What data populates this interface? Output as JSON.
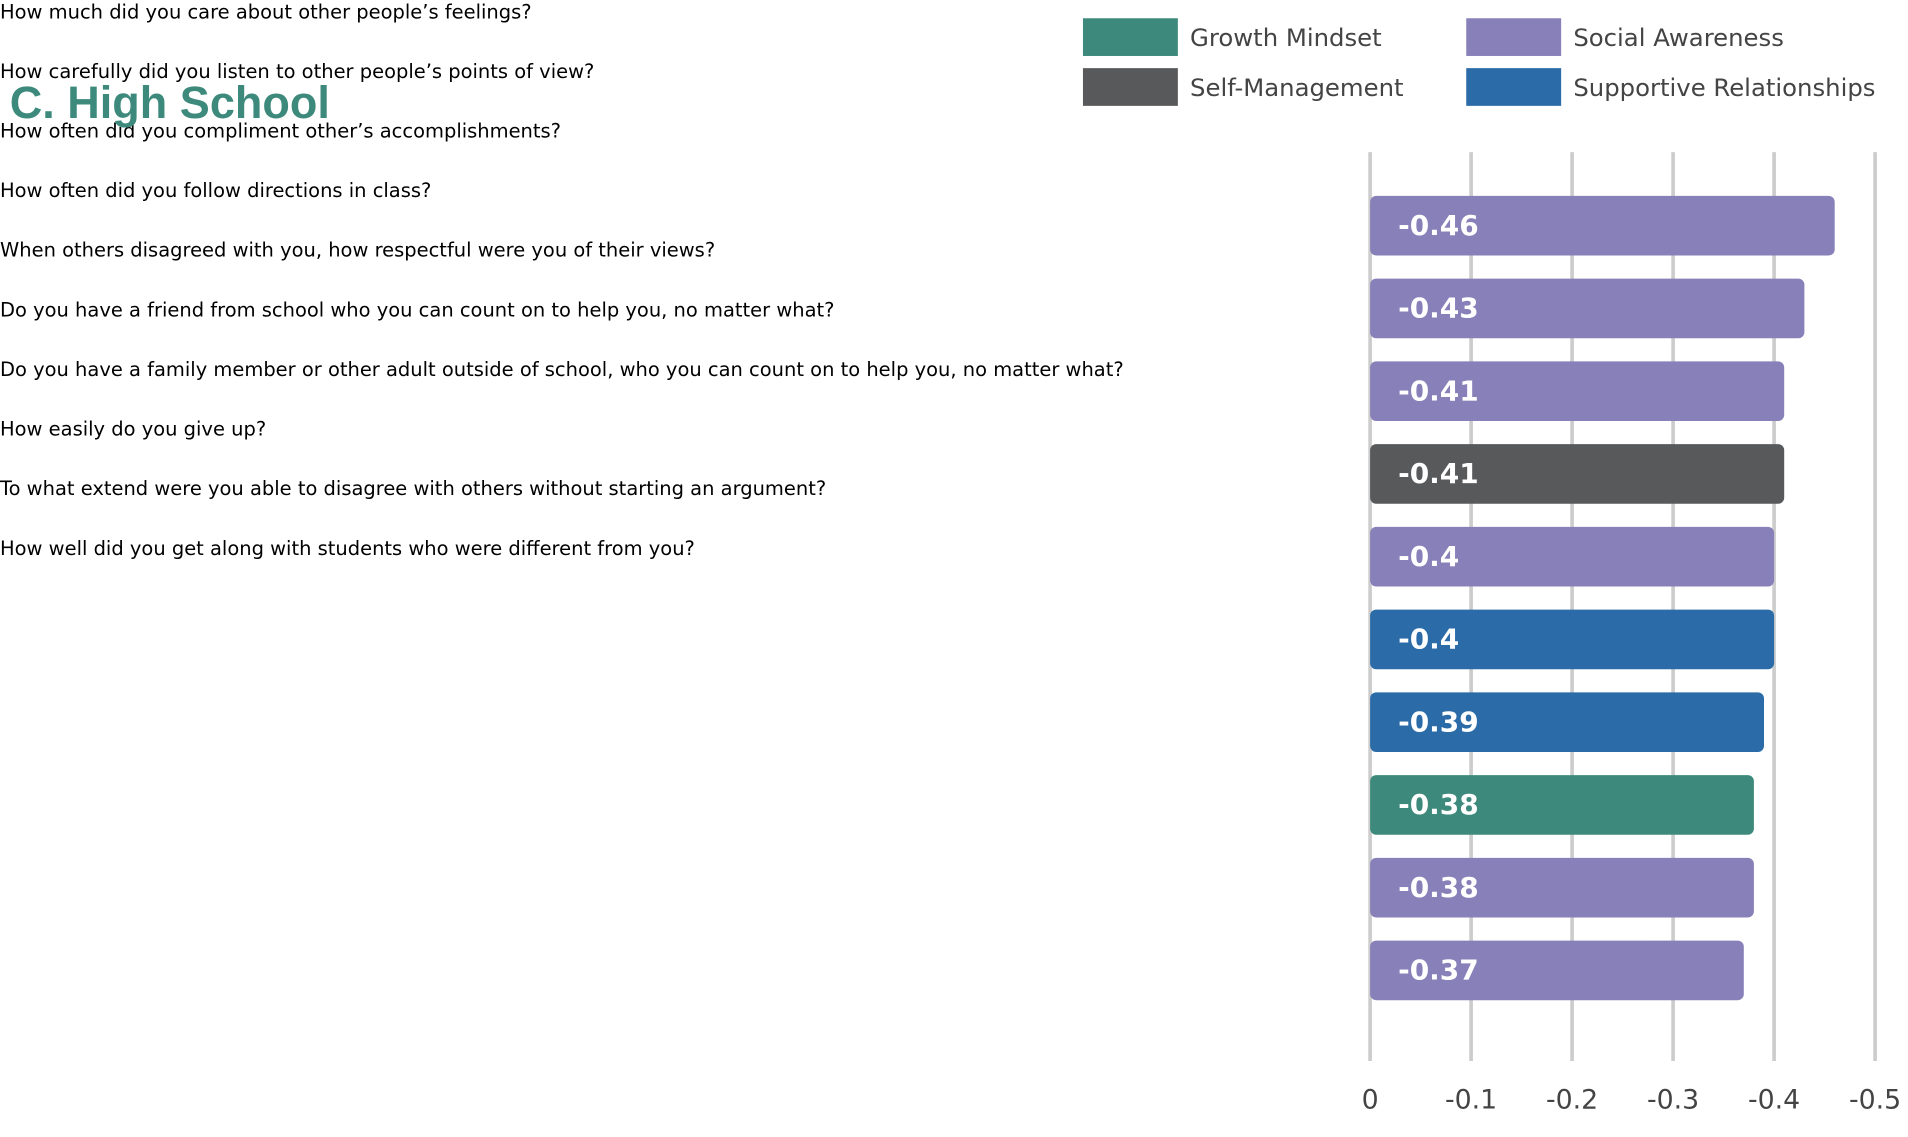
{
  "chart_data": {
    "type": "bar",
    "orientation": "horizontal",
    "title": "C. High School",
    "categories": [
      "How much did you care about other people’s feelings?",
      "How carefully did you listen to other people’s points of view?",
      "How often did you compliment other’s accomplishments?",
      "How often did you follow directions in class?",
      "When others disagreed with you, how respectful were you of their views?",
      "Do you have a friend from school who you can count on to help you, no matter what?",
      "Do you have a family member or other adult outside of school, who you can count on to help you, no matter what?",
      "How easily do you give up?",
      "To what extend were you able to disagree with others without starting an argument?",
      "How well did you get along with students who were different from you?"
    ],
    "series": [
      {
        "name": "Growth Mindset",
        "color": "#3d8a7c",
        "values": [
          null,
          null,
          null,
          null,
          null,
          null,
          null,
          -0.38,
          null,
          null
        ]
      },
      {
        "name": "Self-Management",
        "color": "#58595b",
        "values": [
          null,
          null,
          null,
          -0.41,
          null,
          null,
          null,
          null,
          null,
          null
        ]
      },
      {
        "name": "Social Awareness",
        "color": "#8880b8",
        "values": [
          -0.46,
          -0.43,
          -0.41,
          null,
          -0.4,
          null,
          null,
          null,
          -0.38,
          -0.37
        ]
      },
      {
        "name": "Supportive Relationships",
        "color": "#2b6ca8",
        "values": [
          null,
          null,
          null,
          null,
          null,
          -0.4,
          -0.39,
          null,
          null,
          null
        ]
      }
    ],
    "xlim": [
      0,
      -0.5
    ],
    "xticks": [
      0,
      -0.1,
      -0.2,
      -0.3,
      -0.4,
      -0.5
    ],
    "grid": true
  }
}
